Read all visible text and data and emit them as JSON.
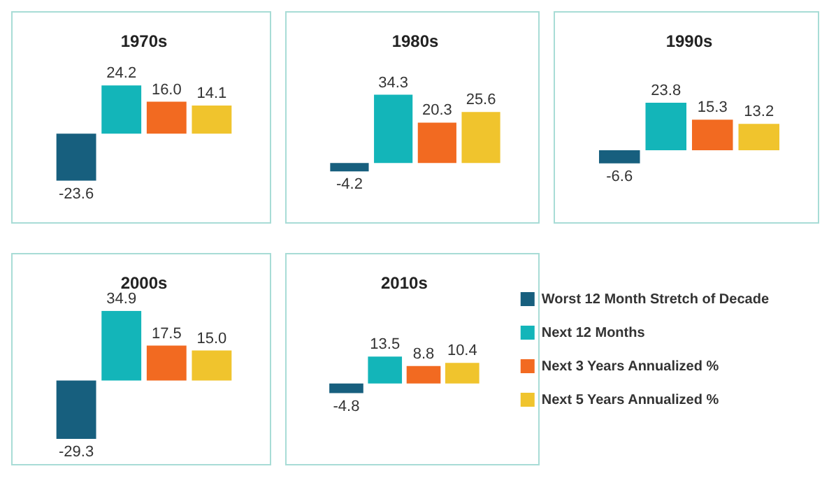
{
  "chart_data": [
    {
      "type": "bar",
      "title": "1970s",
      "categories": [
        null
      ],
      "tick_labels": false,
      "series": [
        {
          "color": "#175f7e",
          "values": [
            -23.6
          ],
          "value_labels": [
            "-23.6"
          ]
        },
        {
          "color": "#13b5b9",
          "values": [
            24.2
          ],
          "value_labels": [
            "24.2"
          ]
        },
        {
          "color": "#f26a21",
          "values": [
            16.0
          ],
          "value_labels": [
            "16.0"
          ]
        },
        {
          "color": "#f0c42d",
          "values": [
            14.1
          ],
          "value_labels": [
            "14.1"
          ]
        }
      ]
    },
    {
      "type": "bar",
      "title": "1980s",
      "categories": [
        null
      ],
      "tick_labels": false,
      "series": [
        {
          "color": "#175f7e",
          "values": [
            -4.2
          ],
          "value_labels": [
            "-4.2"
          ]
        },
        {
          "color": "#13b5b9",
          "values": [
            34.3
          ],
          "value_labels": [
            "34.3"
          ]
        },
        {
          "color": "#f26a21",
          "values": [
            20.3
          ],
          "value_labels": [
            "20.3"
          ]
        },
        {
          "color": "#f0c42d",
          "values": [
            25.6
          ],
          "value_labels": [
            "25.6"
          ]
        }
      ]
    },
    {
      "type": "bar",
      "title": "1990s",
      "categories": [
        null
      ],
      "tick_labels": false,
      "series": [
        {
          "color": "#175f7e",
          "values": [
            -6.6
          ],
          "value_labels": [
            "-6.6"
          ]
        },
        {
          "color": "#13b5b9",
          "values": [
            23.8
          ],
          "value_labels": [
            "23.8"
          ]
        },
        {
          "color": "#f26a21",
          "values": [
            15.3
          ],
          "value_labels": [
            "15.3"
          ]
        },
        {
          "color": "#f0c42d",
          "values": [
            13.2
          ],
          "value_labels": [
            "13.2"
          ]
        }
      ]
    },
    {
      "type": "bar",
      "title": "2000s",
      "categories": [
        null
      ],
      "tick_labels": false,
      "series": [
        {
          "color": "#175f7e",
          "values": [
            -29.3
          ],
          "value_labels": [
            "-29.3"
          ]
        },
        {
          "color": "#13b5b9",
          "values": [
            34.9
          ],
          "value_labels": [
            "34.9"
          ]
        },
        {
          "color": "#f26a21",
          "values": [
            17.5
          ],
          "value_labels": [
            "17.5"
          ]
        },
        {
          "color": "#f0c42d",
          "values": [
            15.0
          ],
          "value_labels": [
            "15.0"
          ]
        }
      ]
    },
    {
      "type": "bar",
      "title": "2010s",
      "categories": [
        null
      ],
      "tick_labels": false,
      "legend": "right",
      "series": [
        {
          "name": "Worst 12 Month Stretch of Decade",
          "color": "#175f7e",
          "values": [
            -4.8
          ],
          "value_labels": [
            "-4.8"
          ]
        },
        {
          "name": "Next 12 Months",
          "color": "#13b5b9",
          "values": [
            13.5
          ],
          "value_labels": [
            "13.5"
          ]
        },
        {
          "name": "Next 3 Years Annualized %",
          "color": "#f26a21",
          "values": [
            8.8
          ],
          "value_labels": [
            "8.8"
          ]
        },
        {
          "name": "Next 5 Years Annualized %",
          "color": "#f0c42d",
          "values": [
            10.4
          ],
          "value_labels": [
            "10.4"
          ]
        }
      ]
    }
  ]
}
